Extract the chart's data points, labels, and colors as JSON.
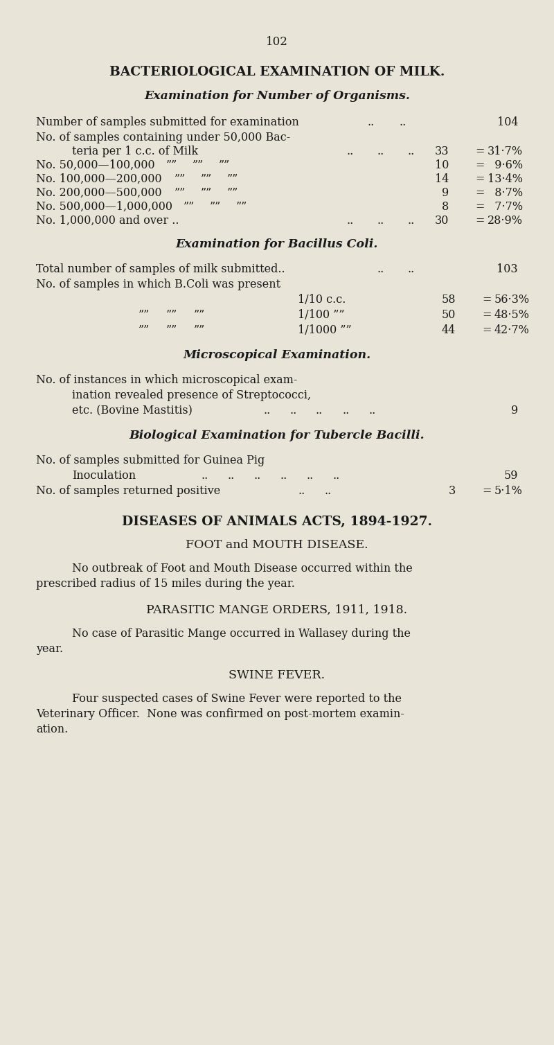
{
  "bg_color": "#e8e4d8",
  "text_color": "#1a1a1a",
  "page_number": "102",
  "title1": "BACTERIOLOGICAL EXAMINATION OF MILK.",
  "subtitle1": "Examination for Number of Organisms.",
  "subtitle2": "Examination for Bacillus Coli.",
  "subtitle3": "Microscopical Examination.",
  "subtitle4": "Biological Examination for Tubercle Bacilli.",
  "title2": "DISEASES OF ANIMALS ACTS, 1894-1927.",
  "subtitle5": "FOOT and MOUTH DISEASE.",
  "subtitle6": "PARASITIC MANGE ORDERS, 1911, 1918.",
  "subtitle7": "SWINE FEVER.",
  "fig_width": 8.0,
  "fig_height": 15.08,
  "dpi": 100
}
